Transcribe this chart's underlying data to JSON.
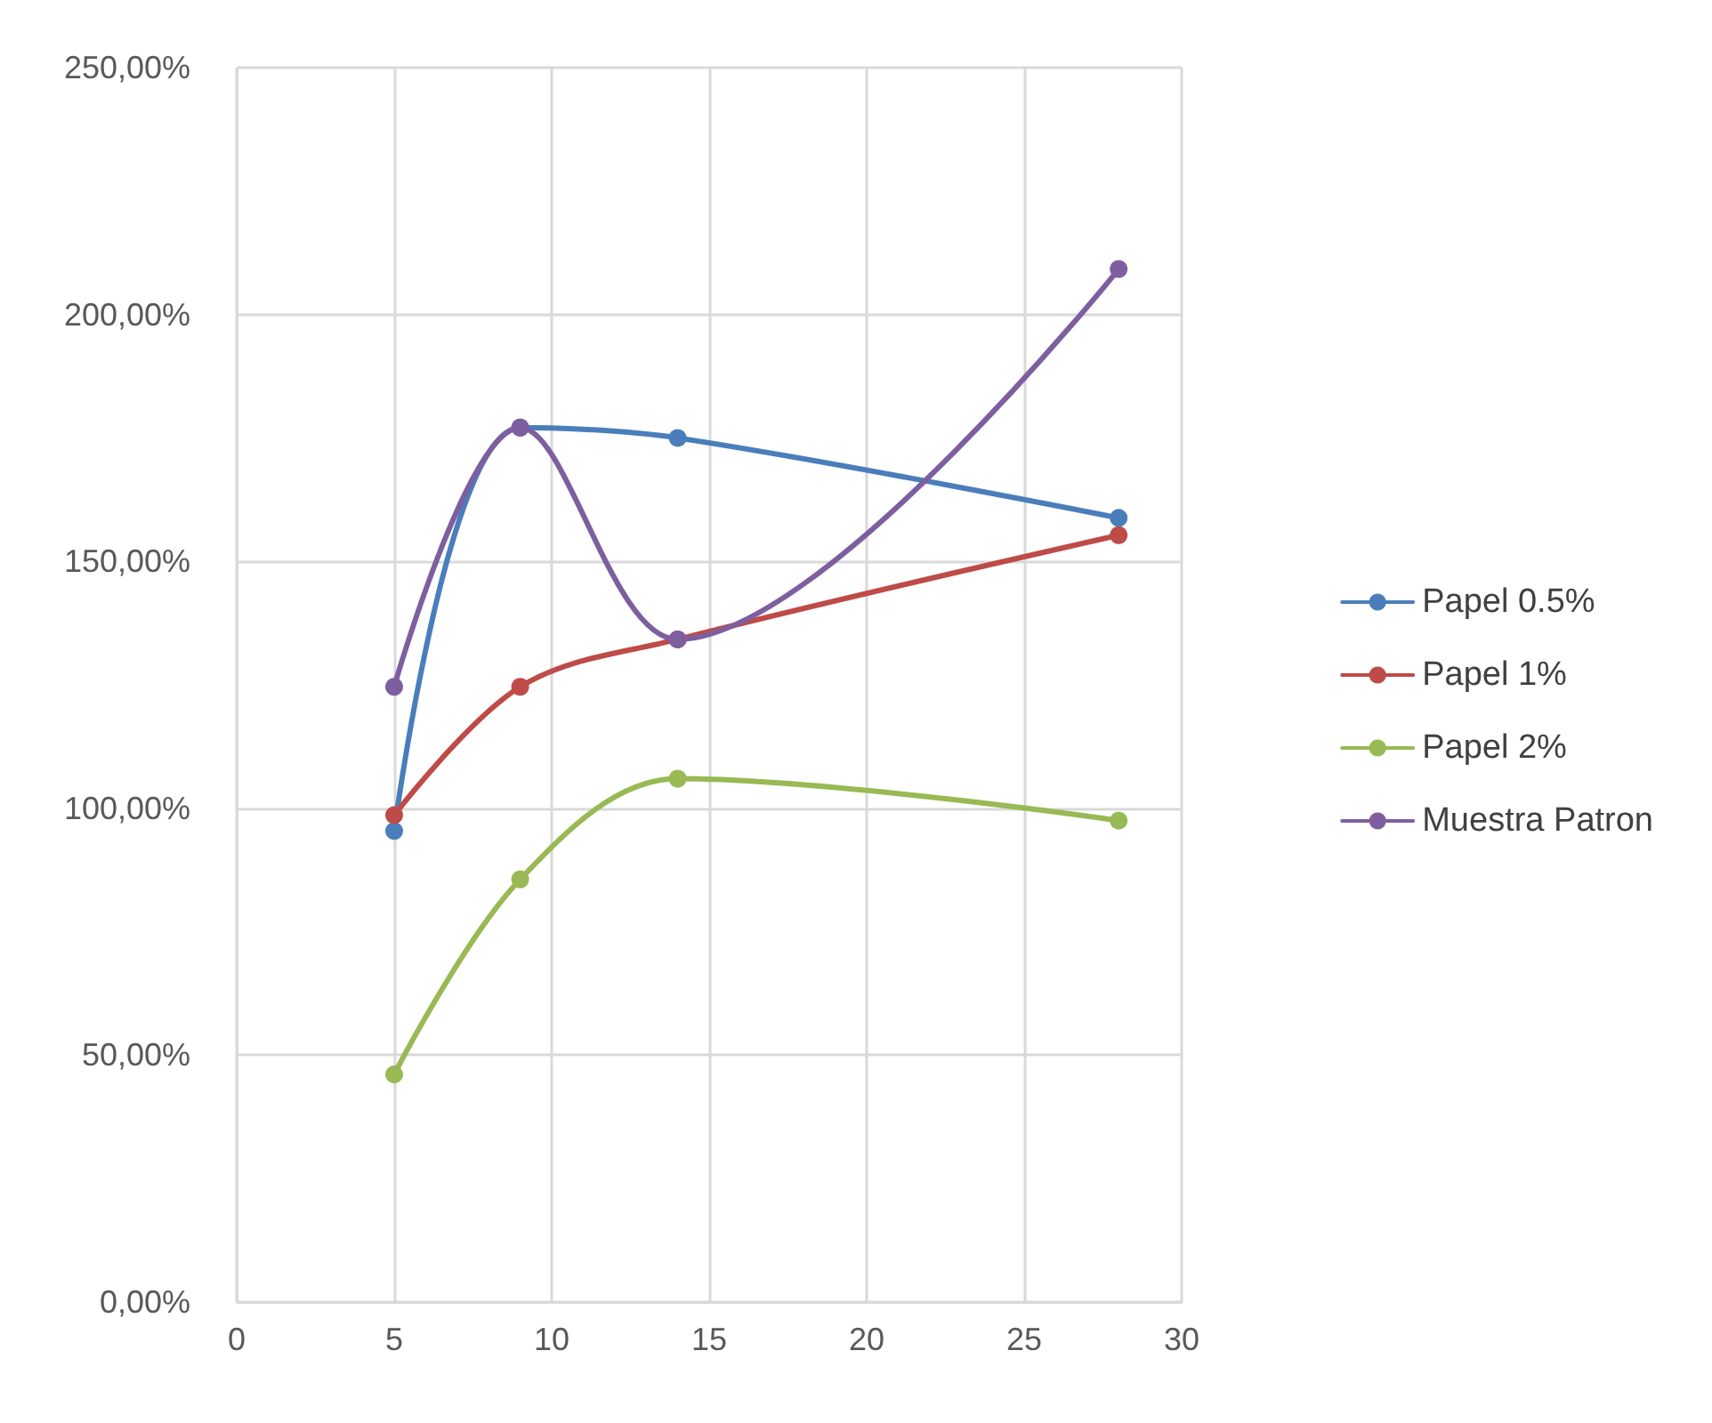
{
  "chart_data": {
    "type": "line",
    "x": [
      5,
      9,
      14,
      28
    ],
    "series": [
      {
        "name": "Papel 0.5%",
        "color": "#4a7ebb",
        "values": [
          95.4,
          177.1,
          175,
          158.8
        ]
      },
      {
        "name": "Papel 1%",
        "color": "#be4b48",
        "values": [
          98.6,
          124.6,
          134.2,
          155.3
        ]
      },
      {
        "name": "Papel 2%",
        "color": "#98b954",
        "values": [
          46.1,
          85.6,
          106,
          97.5
        ]
      },
      {
        "name": "Muestra Patron",
        "color": "#7d5fa0",
        "values": [
          124.6,
          177.1,
          134.2,
          209.2
        ]
      }
    ],
    "xlim": [
      0,
      30
    ],
    "xticks": [
      0,
      5,
      10,
      15,
      20,
      25,
      30
    ],
    "ylim": [
      0,
      250
    ],
    "yticks": [
      {
        "value": 0,
        "label": "0,00%"
      },
      {
        "value": 50,
        "label": "50,00%"
      },
      {
        "value": 100,
        "label": "100,00%"
      },
      {
        "value": 150,
        "label": "150,00%"
      },
      {
        "value": 200,
        "label": "200,00%"
      },
      {
        "value": 250,
        "label": "250,00%"
      }
    ],
    "grid": true,
    "legend": "right",
    "marker": "circle",
    "line_style": "solid"
  }
}
